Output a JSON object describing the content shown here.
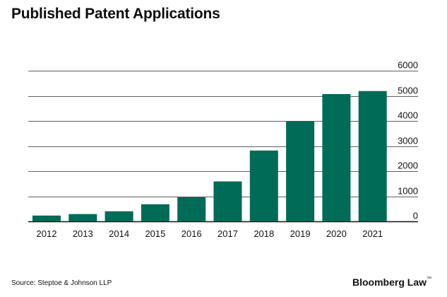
{
  "header": {
    "title": "Published Patent Applications"
  },
  "footer": {
    "source": "Source: Steptoe & Johnson LLP",
    "brand": "Bloomberg Law"
  },
  "colors": {
    "bar": "#006b56",
    "grid": "#2b2b2b",
    "text": "#111111"
  },
  "chart_data": {
    "type": "bar",
    "title": "Published Patent Applications",
    "categories": [
      "2012",
      "2013",
      "2014",
      "2015",
      "2016",
      "2017",
      "2018",
      "2019",
      "2020",
      "2021"
    ],
    "values": [
      230,
      290,
      400,
      680,
      960,
      1590,
      2820,
      3990,
      5070,
      5190
    ],
    "ylim": [
      0,
      6000
    ],
    "yticks": [
      0,
      1000,
      2000,
      3000,
      4000,
      5000,
      6000
    ],
    "ytick_labels": [
      "0",
      "1000",
      "2000",
      "3000",
      "4000",
      "5000",
      "6000"
    ],
    "grid": true,
    "y_axis_position": "right",
    "legend": "none"
  }
}
